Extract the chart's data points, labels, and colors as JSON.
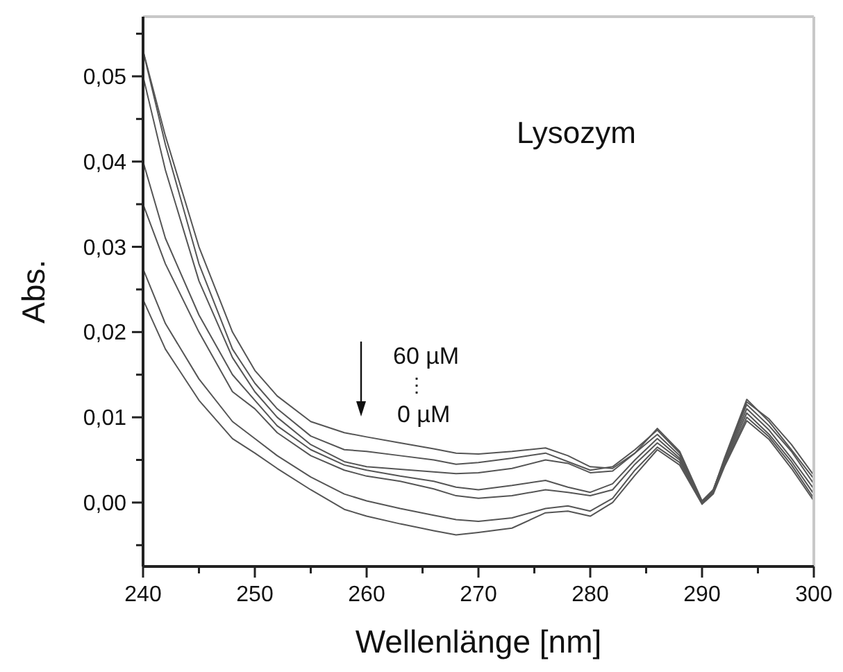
{
  "chart_data": {
    "type": "line",
    "xlabel": "Wellenlänge [nm]",
    "ylabel": "Abs.",
    "annotations": [
      "Lysozym",
      "60 µM",
      "⋮",
      "0 µM"
    ],
    "x": [
      240,
      242,
      245,
      248,
      250,
      252,
      255,
      258,
      260,
      263,
      266,
      268,
      270,
      273,
      276,
      278,
      280,
      282,
      284,
      286,
      288,
      290,
      291,
      292,
      294,
      296,
      298,
      300
    ],
    "series": [
      {
        "color": "#555555",
        "values": [
          0.053,
          0.043,
          0.03,
          0.02,
          0.0155,
          0.0125,
          0.0095,
          0.0082,
          0.0077,
          0.007,
          0.0063,
          0.0058,
          0.0057,
          0.006,
          0.0064,
          0.0055,
          0.0042,
          0.004,
          0.0058,
          0.0087,
          0.006,
          0.0002,
          0.0015,
          0.005,
          0.0118,
          0.0098,
          0.0068,
          0.0032
        ]
      },
      {
        "color": "#555555",
        "values": [
          0.053,
          0.042,
          0.028,
          0.018,
          0.014,
          0.011,
          0.0078,
          0.0062,
          0.006,
          0.0055,
          0.005,
          0.0045,
          0.0047,
          0.0052,
          0.0058,
          0.0048,
          0.0038,
          0.0042,
          0.0062,
          0.0085,
          0.0058,
          0.0,
          0.0014,
          0.0052,
          0.0121,
          0.0095,
          0.0062,
          0.0028
        ]
      },
      {
        "color": "#555555",
        "values": [
          0.05,
          0.039,
          0.026,
          0.017,
          0.013,
          0.01,
          0.0068,
          0.0048,
          0.0042,
          0.0039,
          0.0036,
          0.0034,
          0.0035,
          0.004,
          0.005,
          0.0046,
          0.0035,
          0.0037,
          0.0058,
          0.008,
          0.0055,
          0.0001,
          0.0015,
          0.005,
          0.0115,
          0.009,
          0.006,
          0.0022
        ]
      },
      {
        "color": "#555555",
        "values": [
          0.04,
          0.031,
          0.022,
          0.015,
          0.012,
          0.009,
          0.0062,
          0.0044,
          0.0038,
          0.0031,
          0.0025,
          0.0018,
          0.0015,
          0.002,
          0.0026,
          0.0018,
          0.0012,
          0.0022,
          0.005,
          0.0075,
          0.0052,
          0.0,
          0.0013,
          0.0048,
          0.011,
          0.0085,
          0.0052,
          0.0016
        ]
      },
      {
        "color": "#555555",
        "values": [
          0.035,
          0.028,
          0.02,
          0.013,
          0.011,
          0.0082,
          0.0055,
          0.0038,
          0.0031,
          0.0025,
          0.0016,
          0.0008,
          0.0005,
          0.0008,
          0.0015,
          0.0012,
          0.0008,
          0.0015,
          0.0045,
          0.007,
          0.005,
          0.0,
          0.0012,
          0.0046,
          0.0105,
          0.008,
          0.0048,
          0.001
        ]
      },
      {
        "color": "#555555",
        "values": [
          0.0274,
          0.021,
          0.0145,
          0.0095,
          0.0075,
          0.0055,
          0.003,
          0.001,
          0.0002,
          -0.0007,
          -0.0015,
          -0.002,
          -0.0022,
          -0.0018,
          -0.0007,
          -0.0004,
          -0.001,
          0.0005,
          0.0038,
          0.0065,
          0.0047,
          -0.0001,
          0.0011,
          0.0044,
          0.01,
          0.0077,
          0.0044,
          0.0005
        ]
      },
      {
        "color": "#555555",
        "values": [
          0.0238,
          0.018,
          0.012,
          0.0075,
          0.0058,
          0.004,
          0.0015,
          -0.0008,
          -0.0016,
          -0.0025,
          -0.0033,
          -0.0038,
          -0.0035,
          -0.003,
          -0.0012,
          -0.001,
          -0.0016,
          0.0,
          0.0032,
          0.0062,
          0.0044,
          -0.0002,
          0.001,
          0.0042,
          0.0096,
          0.0074,
          0.004,
          0.0002
        ]
      }
    ],
    "xlim": [
      240,
      300
    ],
    "ylim": [
      -0.0075,
      0.057
    ],
    "xticks": [
      240,
      {
        "value": 245,
        "label": null
      },
      250,
      {
        "value": 255,
        "label": null
      },
      260,
      {
        "value": 265,
        "label": null
      },
      270,
      {
        "value": 275,
        "label": null
      },
      280,
      {
        "value": 285,
        "label": null
      },
      290,
      {
        "value": 295,
        "label": null
      },
      300
    ],
    "yticks": [
      {
        "value": -0.005,
        "label": null
      },
      {
        "value": 0,
        "label": "0,00"
      },
      {
        "value": 0.005,
        "label": null
      },
      {
        "value": 0.01,
        "label": "0,01"
      },
      {
        "value": 0.015,
        "label": null
      },
      {
        "value": 0.02,
        "label": "0,02"
      },
      {
        "value": 0.025,
        "label": null
      },
      {
        "value": 0.03,
        "label": "0,03"
      },
      {
        "value": 0.035,
        "label": null
      },
      {
        "value": 0.04,
        "label": "0,04"
      },
      {
        "value": 0.045,
        "label": null
      },
      {
        "value": 0.05,
        "label": "0,05"
      },
      {
        "value": 0.055,
        "label": null
      }
    ],
    "grid": false,
    "marker": "none",
    "line_style": "solid"
  }
}
